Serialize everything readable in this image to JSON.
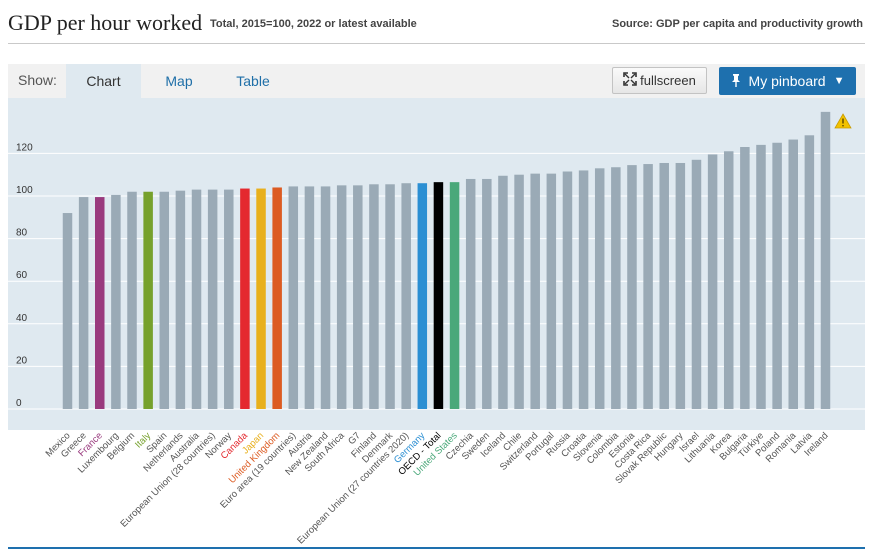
{
  "header": {
    "title": "GDP per hour worked",
    "subtitle": "Total, 2015=100, 2022 or latest available",
    "source": "Source: GDP per capita and productivity growth"
  },
  "tabs": {
    "show_label": "Show:",
    "chart": "Chart",
    "map": "Map",
    "table": "Table"
  },
  "buttons": {
    "fullscreen": "fullscreen",
    "pinboard": "My pinboard",
    "pinboard_arrow": "▼"
  },
  "colors": {
    "default_bar": "#9aaab6",
    "panel_bg": "#dfe9f0",
    "grid": "#ffffff",
    "accent": "#1e70ae",
    "warning": "#f2c200"
  },
  "chart_data": {
    "type": "bar",
    "title": "GDP per hour worked",
    "ylim": [
      0,
      140
    ],
    "yticks": [
      0,
      20,
      40,
      60,
      80,
      100,
      120
    ],
    "grid": true,
    "categories": [
      "Mexico",
      "Greece",
      "France",
      "Luxembourg",
      "Belgium",
      "Italy",
      "Spain",
      "Netherlands",
      "Australia",
      "European Union (28 countries)",
      "Norway",
      "Canada",
      "Japan",
      "United Kingdom",
      "Euro area (19 countries)",
      "Austria",
      "New Zealand",
      "South Africa",
      "G7",
      "Finland",
      "Denmark",
      "European Union (27 countries 2020)",
      "Germany",
      "OECD - Total",
      "United States",
      "Czechia",
      "Sweden",
      "Iceland",
      "Chile",
      "Switzerland",
      "Portugal",
      "Russia",
      "Croatia",
      "Slovenia",
      "Colombia",
      "Estonia",
      "Costa Rica",
      "Slovak Republic",
      "Hungary",
      "Israel",
      "Lithuania",
      "Korea",
      "Bulgaria",
      "Türkiye",
      "Poland",
      "Romania",
      "Latvia",
      "Ireland"
    ],
    "values": [
      92,
      99.5,
      99.5,
      100.5,
      102,
      102,
      102,
      102.5,
      103,
      103,
      103,
      103.5,
      103.5,
      104,
      104.5,
      104.5,
      104.5,
      105,
      105,
      105.5,
      105.5,
      106,
      106,
      106.5,
      106.5,
      108,
      108,
      109.5,
      110,
      110.5,
      110.5,
      111.5,
      112,
      113,
      113.5,
      114.5,
      115,
      115.5,
      115.5,
      117,
      119.5,
      121,
      123,
      124,
      125,
      126.5,
      128.5,
      139.5
    ],
    "highlight_colors": {
      "France": "#993a7e",
      "Italy": "#76a12c",
      "Canada": "#e4292f",
      "Japan": "#e8b01d",
      "United Kingdom": "#dc5b22",
      "Germany": "#2b8fd3",
      "OECD - Total": "#000000",
      "United States": "#4aa87a"
    },
    "annotations": [
      "warning-icon above Ireland"
    ]
  }
}
